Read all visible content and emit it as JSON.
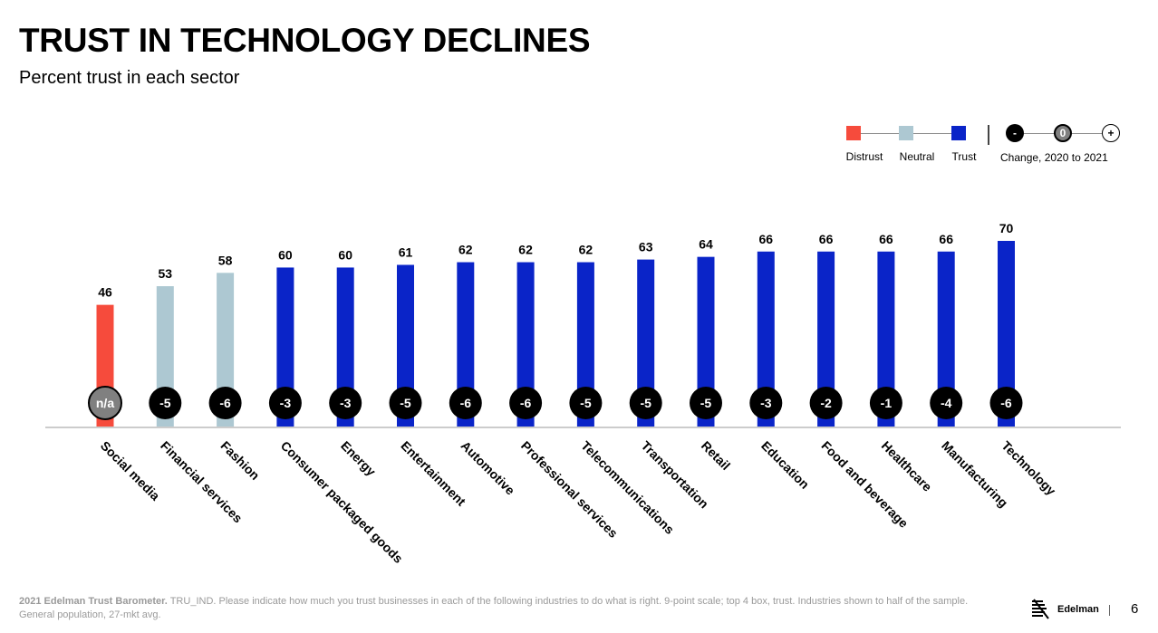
{
  "header": {
    "title": "TRUST IN TECHNOLOGY DECLINES",
    "subtitle": "Percent trust in each sector"
  },
  "legend": {
    "distrust": "Distrust",
    "neutral": "Neutral",
    "trust": "Trust",
    "change_minus": "-",
    "change_zero": "0",
    "change_plus": "+",
    "change_label": "Change, 2020 to 2021"
  },
  "colors": {
    "distrust": "#f64b3c",
    "neutral": "#adc8d2",
    "trust": "#0a24c8",
    "change_negative": "#000000",
    "change_na": "#808080",
    "axis": "#cccccc"
  },
  "chart_data": {
    "type": "bar",
    "categories": [
      "Social media",
      "Financial services",
      "Fashion",
      "Consumer packaged goods",
      "Energy",
      "Entertainment",
      "Automotive",
      "Professional services",
      "Telecommunications",
      "Transportation",
      "Retail",
      "Education",
      "Food and beverage",
      "Healthcare",
      "Manufacturing",
      "Technology"
    ],
    "values": [
      46,
      53,
      58,
      60,
      60,
      61,
      62,
      62,
      62,
      63,
      64,
      66,
      66,
      66,
      66,
      70
    ],
    "trust_level": [
      "distrust",
      "neutral",
      "neutral",
      "trust",
      "trust",
      "trust",
      "trust",
      "trust",
      "trust",
      "trust",
      "trust",
      "trust",
      "trust",
      "trust",
      "trust",
      "trust"
    ],
    "change_2020_to_2021": [
      "n/a",
      "-5",
      "-6",
      "-3",
      "-3",
      "-5",
      "-6",
      "-6",
      "-5",
      "-5",
      "-5",
      "-3",
      "-2",
      "-1",
      "-4",
      "-6"
    ],
    "ylim": [
      0,
      70
    ],
    "grid": false
  },
  "footer": {
    "source_bold": "2021 Edelman Trust Barometer.",
    "source_text": " TRU_IND. Please indicate how much you trust businesses in each of the following industries to do what is right. 9-point scale; top 4 box, trust. Industries shown to half of the sample. General population, 27-mkt avg.",
    "logo_text": "Edelman",
    "page_number": "6"
  }
}
